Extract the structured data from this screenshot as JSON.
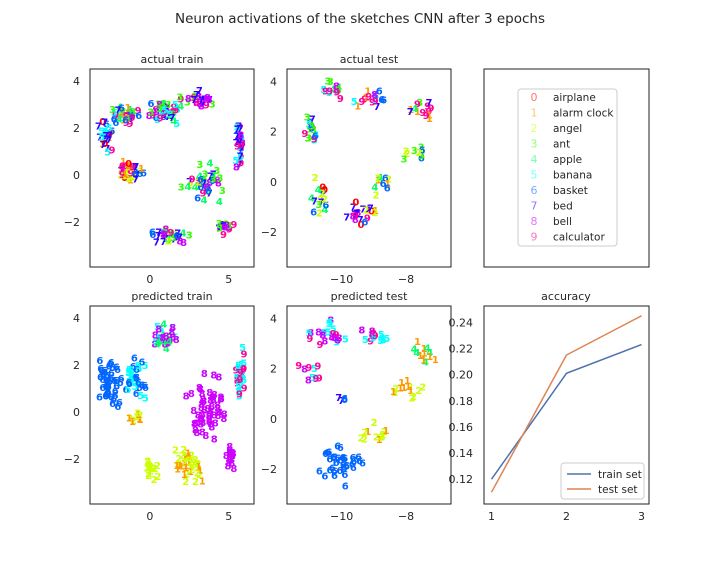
{
  "suptitle": "Neuron activations of the sketches CNN after 3 epochs",
  "categories": [
    {
      "digit": "0",
      "name": "airplane",
      "color": "#ff0000"
    },
    {
      "digit": "1",
      "name": "alarm clock",
      "color": "#ff9900"
    },
    {
      "digit": "2",
      "name": "angel",
      "color": "#ccff00"
    },
    {
      "digit": "3",
      "name": "ant",
      "color": "#33ff00"
    },
    {
      "digit": "4",
      "name": "apple",
      "color": "#00ff66"
    },
    {
      "digit": "5",
      "name": "banana",
      "color": "#00ffff"
    },
    {
      "digit": "6",
      "name": "basket",
      "color": "#0066ff"
    },
    {
      "digit": "7",
      "name": "bed",
      "color": "#3300ff"
    },
    {
      "digit": "8",
      "name": "bell",
      "color": "#cc00ff"
    },
    {
      "digit": "9",
      "name": "calculator",
      "color": "#ff0099"
    }
  ],
  "chart_data": [
    {
      "type": "scatter",
      "title": "actual train",
      "xticks": [
        0,
        5
      ],
      "yticks": [
        -2,
        0,
        2,
        4
      ],
      "xlim": [
        -3.8,
        6.6
      ],
      "ylim": [
        -3.9,
        4.5
      ],
      "clusters": [
        {
          "cx": -2.8,
          "cy": 1.5,
          "rx": 0.6,
          "ry": 0.9,
          "n": 30,
          "digits": [
            0,
            6,
            7,
            9,
            5,
            1
          ]
        },
        {
          "cx": -1.5,
          "cy": 2.4,
          "rx": 1.1,
          "ry": 0.5,
          "n": 35,
          "digits": [
            5,
            3,
            9,
            4,
            7,
            6,
            1
          ]
        },
        {
          "cx": 1.0,
          "cy": 2.5,
          "rx": 1.4,
          "ry": 0.6,
          "n": 45,
          "digits": [
            5,
            7,
            6,
            9,
            8,
            3,
            4
          ]
        },
        {
          "cx": 3.0,
          "cy": 3.1,
          "rx": 1.2,
          "ry": 0.4,
          "n": 25,
          "digits": [
            9,
            8,
            7,
            3
          ]
        },
        {
          "cx": 5.7,
          "cy": 1.3,
          "rx": 0.4,
          "ry": 1.3,
          "n": 35,
          "digits": [
            9,
            8,
            5,
            7
          ]
        },
        {
          "cx": -1.2,
          "cy": 0.0,
          "rx": 1.2,
          "ry": 0.6,
          "n": 35,
          "digits": [
            0,
            7,
            1,
            2,
            9,
            6
          ]
        },
        {
          "cx": 3.5,
          "cy": -0.5,
          "rx": 1.7,
          "ry": 1.0,
          "n": 40,
          "digits": [
            4,
            2,
            3,
            8,
            9,
            6,
            7
          ]
        },
        {
          "cx": 1.2,
          "cy": -2.7,
          "rx": 1.6,
          "ry": 0.5,
          "n": 30,
          "digits": [
            4,
            9,
            2,
            7,
            6,
            3,
            8
          ]
        },
        {
          "cx": 4.8,
          "cy": -2.3,
          "rx": 0.8,
          "ry": 0.5,
          "n": 15,
          "digits": [
            7,
            9,
            8,
            3
          ]
        }
      ]
    },
    {
      "type": "scatter",
      "title": "actual test",
      "xticks": [
        -10,
        -8
      ],
      "yticks": [
        -2,
        0,
        2,
        4
      ],
      "xlim": [
        -11.7,
        -6.6
      ],
      "ylim": [
        -3.4,
        4.5
      ],
      "clusters": [
        {
          "cx": -10.4,
          "cy": 3.6,
          "rx": 0.5,
          "ry": 0.5,
          "n": 14,
          "digits": [
            5,
            8,
            9,
            3,
            4
          ]
        },
        {
          "cx": -11.0,
          "cy": 2.0,
          "rx": 0.5,
          "ry": 0.8,
          "n": 16,
          "digits": [
            9,
            5,
            7,
            6,
            3
          ]
        },
        {
          "cx": -9.2,
          "cy": 3.2,
          "rx": 0.7,
          "ry": 0.5,
          "n": 16,
          "digits": [
            9,
            8,
            6,
            5,
            1,
            7
          ]
        },
        {
          "cx": -7.6,
          "cy": 2.7,
          "rx": 0.6,
          "ry": 0.6,
          "n": 14,
          "digits": [
            4,
            7,
            1,
            3,
            9
          ]
        },
        {
          "cx": -7.8,
          "cy": 1.0,
          "rx": 0.6,
          "ry": 0.5,
          "n": 10,
          "digits": [
            2,
            3,
            1,
            6
          ]
        },
        {
          "cx": -10.7,
          "cy": -1.0,
          "rx": 0.6,
          "ry": 1.3,
          "n": 16,
          "digits": [
            6,
            3,
            0,
            2,
            4,
            7
          ]
        },
        {
          "cx": -9.5,
          "cy": -1.5,
          "rx": 0.7,
          "ry": 0.8,
          "n": 20,
          "digits": [
            7,
            0,
            8,
            1,
            6,
            9,
            2
          ]
        },
        {
          "cx": -8.8,
          "cy": -0.2,
          "rx": 0.6,
          "ry": 0.7,
          "n": 10,
          "digits": [
            6,
            2,
            1,
            4
          ]
        }
      ]
    },
    {
      "type": "scatter",
      "title": "predicted train",
      "xticks": [
        0,
        5
      ],
      "yticks": [
        -2,
        0,
        2,
        4
      ],
      "xlim": [
        -3.8,
        6.6
      ],
      "ylim": [
        -3.9,
        4.5
      ],
      "clusters": [
        {
          "cx": -2.6,
          "cy": 1.1,
          "rx": 1.1,
          "ry": 1.5,
          "n": 45,
          "digits": [
            6
          ]
        },
        {
          "cx": -0.9,
          "cy": 1.3,
          "rx": 1.0,
          "ry": 1.2,
          "n": 35,
          "digits": [
            6,
            5
          ]
        },
        {
          "cx": 0.9,
          "cy": 3.0,
          "rx": 1.0,
          "ry": 0.7,
          "n": 30,
          "digits": [
            8,
            5,
            4
          ]
        },
        {
          "cx": 3.7,
          "cy": 0.0,
          "rx": 1.6,
          "ry": 1.7,
          "n": 55,
          "digits": [
            8
          ]
        },
        {
          "cx": 5.7,
          "cy": 1.5,
          "rx": 0.4,
          "ry": 1.2,
          "n": 30,
          "digits": [
            9,
            5
          ]
        },
        {
          "cx": -0.8,
          "cy": -0.4,
          "rx": 0.8,
          "ry": 0.3,
          "n": 10,
          "digits": [
            1,
            2
          ]
        },
        {
          "cx": 2.5,
          "cy": -2.3,
          "rx": 1.3,
          "ry": 0.9,
          "n": 40,
          "digits": [
            1,
            2
          ]
        },
        {
          "cx": 0.1,
          "cy": -2.6,
          "rx": 0.7,
          "ry": 0.6,
          "n": 15,
          "digits": [
            2
          ]
        },
        {
          "cx": 5.1,
          "cy": -2.0,
          "rx": 0.5,
          "ry": 0.7,
          "n": 15,
          "digits": [
            8
          ]
        }
      ]
    },
    {
      "type": "scatter",
      "title": "predicted test",
      "xticks": [
        -10,
        -8
      ],
      "yticks": [
        -2,
        0,
        2,
        4
      ],
      "xlim": [
        -11.7,
        -6.6
      ],
      "ylim": [
        -3.4,
        4.5
      ],
      "clusters": [
        {
          "cx": -10.5,
          "cy": 3.2,
          "rx": 0.9,
          "ry": 0.7,
          "n": 22,
          "digits": [
            8,
            5,
            9
          ]
        },
        {
          "cx": -9.0,
          "cy": 3.2,
          "rx": 0.6,
          "ry": 0.5,
          "n": 14,
          "digits": [
            8,
            5,
            9
          ]
        },
        {
          "cx": -7.4,
          "cy": 2.5,
          "rx": 0.5,
          "ry": 0.6,
          "n": 12,
          "digits": [
            1,
            4
          ]
        },
        {
          "cx": -10.9,
          "cy": 1.6,
          "rx": 0.5,
          "ry": 0.6,
          "n": 10,
          "digits": [
            9,
            8,
            5
          ]
        },
        {
          "cx": -8.0,
          "cy": 1.0,
          "rx": 0.8,
          "ry": 0.6,
          "n": 14,
          "digits": [
            1,
            2
          ]
        },
        {
          "cx": -10.0,
          "cy": -1.9,
          "rx": 0.9,
          "ry": 1.0,
          "n": 36,
          "digits": [
            6
          ]
        },
        {
          "cx": -9.0,
          "cy": -0.6,
          "rx": 0.6,
          "ry": 0.8,
          "n": 12,
          "digits": [
            2,
            1
          ]
        },
        {
          "cx": -10.0,
          "cy": 0.6,
          "rx": 0.4,
          "ry": 0.3,
          "n": 4,
          "digits": [
            6,
            7
          ]
        }
      ]
    },
    {
      "type": "legend",
      "entries": [
        "airplane",
        "alarm clock",
        "angel",
        "ant",
        "apple",
        "banana",
        "basket",
        "bed",
        "bell",
        "calculator"
      ]
    },
    {
      "type": "line",
      "title": "accuracy",
      "x": [
        1,
        2,
        3
      ],
      "xticks": [
        1,
        2,
        3
      ],
      "yticks": [
        0.12,
        0.14,
        0.16,
        0.18,
        0.2,
        0.22,
        0.24
      ],
      "xlim": [
        0.9,
        3.1
      ],
      "ylim": [
        0.101,
        0.2525
      ],
      "legend": "lower-right",
      "series": [
        {
          "name": "train set",
          "values": [
            0.12,
            0.201,
            0.223
          ],
          "color": "#4c72b0"
        },
        {
          "name": "test set",
          "values": [
            0.11,
            0.215,
            0.245
          ],
          "color": "#dd8452"
        }
      ]
    }
  ]
}
